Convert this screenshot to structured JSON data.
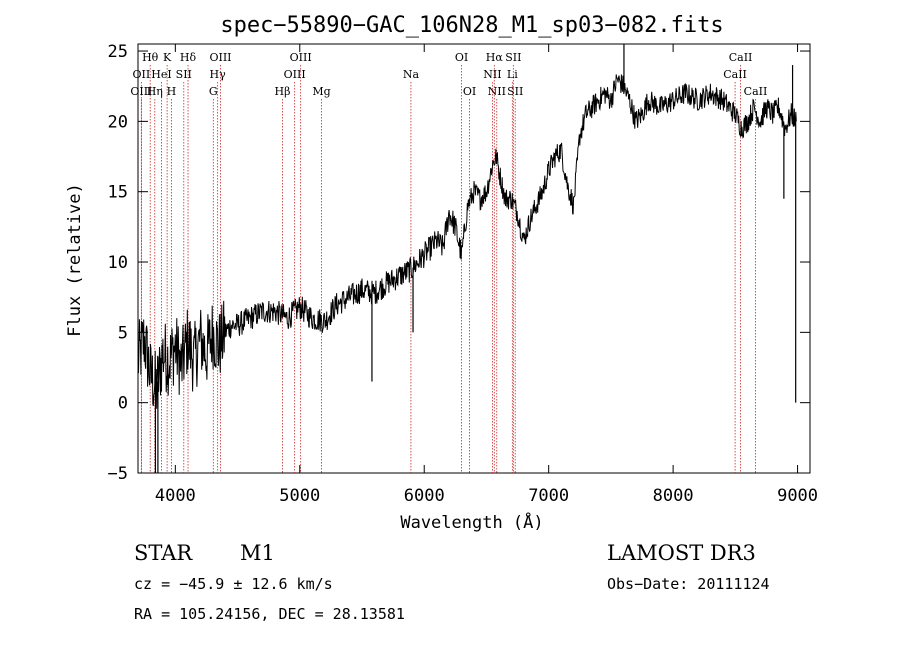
{
  "chart_data": {
    "type": "line",
    "title": "spec−55890−GAC_106N28_M1_sp03−082.fits",
    "xlabel": "Wavelength (Å)",
    "ylabel": "Flux (relative)",
    "xlim": [
      3700,
      9100
    ],
    "ylim": [
      -5,
      25.5
    ],
    "x_ticks": [
      4000,
      5000,
      6000,
      7000,
      8000,
      9000
    ],
    "y_ticks": [
      -5,
      0,
      5,
      10,
      15,
      20,
      25
    ],
    "series": [
      {
        "name": "flux",
        "x": [
          3700,
          3750,
          3800,
          3850,
          3900,
          3950,
          4000,
          4050,
          4100,
          4150,
          4200,
          4250,
          4300,
          4350,
          4400,
          4450,
          4500,
          4600,
          4700,
          4800,
          4900,
          5000,
          5100,
          5200,
          5300,
          5400,
          5500,
          5600,
          5700,
          5800,
          5900,
          6000,
          6100,
          6150,
          6200,
          6250,
          6300,
          6350,
          6400,
          6450,
          6500,
          6550,
          6580,
          6600,
          6650,
          6700,
          6750,
          6800,
          6850,
          6900,
          6950,
          7000,
          7050,
          7100,
          7150,
          7200,
          7250,
          7300,
          7350,
          7400,
          7450,
          7500,
          7550,
          7600,
          7650,
          7700,
          7750,
          7800,
          7900,
          8000,
          8100,
          8200,
          8300,
          8400,
          8500,
          8550,
          8600,
          8650,
          8700,
          8750,
          8800,
          8850,
          8900,
          8950,
          8990
        ],
        "y": [
          3.0,
          4.5,
          2.0,
          1.0,
          3.5,
          3.0,
          4.0,
          2.5,
          4.5,
          3.0,
          4.5,
          3.5,
          5.0,
          4.0,
          5.0,
          5.5,
          5.5,
          6.0,
          6.5,
          6.5,
          6.0,
          6.8,
          6.0,
          5.8,
          7.0,
          7.5,
          8.0,
          7.8,
          8.5,
          9.0,
          9.5,
          10.5,
          11.5,
          11.0,
          13.5,
          12.5,
          10.5,
          14.0,
          15.0,
          14.5,
          15.0,
          17.0,
          17.5,
          16.5,
          14.5,
          14.5,
          13.5,
          11.5,
          13.0,
          14.0,
          15.0,
          16.5,
          17.5,
          18.0,
          15.5,
          14.0,
          19.0,
          20.5,
          21.0,
          21.5,
          22.0,
          21.5,
          23.0,
          22.5,
          21.5,
          20.0,
          20.5,
          21.5,
          21.0,
          21.5,
          22.0,
          21.5,
          22.0,
          21.5,
          20.5,
          19.5,
          20.0,
          21.0,
          20.0,
          21.0,
          20.5,
          21.0,
          19.5,
          20.5,
          20.0
        ]
      }
    ],
    "spikes": [
      {
        "x": 3840,
        "y": -5.0
      },
      {
        "x": 3860,
        "y": -5.0
      },
      {
        "x": 5580,
        "y": 1.5
      },
      {
        "x": 5910,
        "y": 5.0
      },
      {
        "x": 7605,
        "y": 26.5
      },
      {
        "x": 8890,
        "y": 14.5
      },
      {
        "x": 8960,
        "y": 24.0
      },
      {
        "x": 8985,
        "y": 0.0
      }
    ],
    "spectral_lines": [
      {
        "label": "Hθ",
        "x": 3798,
        "row": 0
      },
      {
        "label": "OII",
        "x": 3727,
        "row": 1
      },
      {
        "label": "OIII",
        "x": 3727,
        "row": 2
      },
      {
        "label": "K",
        "x": 3934,
        "row": 0
      },
      {
        "label": "HeI",
        "x": 3889,
        "row": 1
      },
      {
        "label": "Hη",
        "x": 3835,
        "row": 2
      },
      {
        "label": "SII",
        "x": 4068,
        "row": 1
      },
      {
        "label": "H",
        "x": 3969,
        "row": 2
      },
      {
        "label": "Hδ",
        "x": 4102,
        "row": 0
      },
      {
        "label": "OIII",
        "x": 4363,
        "row": 0
      },
      {
        "label": "Hγ",
        "x": 4340,
        "row": 1
      },
      {
        "label": "G",
        "x": 4305,
        "row": 2
      },
      {
        "label": "OIII",
        "x": 5007,
        "row": 0
      },
      {
        "label": "OIII",
        "x": 4959,
        "row": 1
      },
      {
        "label": "Hβ",
        "x": 4861,
        "row": 2
      },
      {
        "label": "Mg",
        "x": 5175,
        "row": 2
      },
      {
        "label": "Na",
        "x": 5893,
        "row": 1
      },
      {
        "label": "OI",
        "x": 6300,
        "row": 0
      },
      {
        "label": "OI",
        "x": 6364,
        "row": 2
      },
      {
        "label": "Hα",
        "x": 6563,
        "row": 0
      },
      {
        "label": "SII",
        "x": 6716,
        "row": 0
      },
      {
        "label": "NII",
        "x": 6548,
        "row": 1
      },
      {
        "label": "Li",
        "x": 6708,
        "row": 1
      },
      {
        "label": "NII",
        "x": 6583,
        "row": 2
      },
      {
        "label": "SII",
        "x": 6731,
        "row": 2
      },
      {
        "label": "CaII",
        "x": 8542,
        "row": 0
      },
      {
        "label": "CaII",
        "x": 8498,
        "row": 1
      },
      {
        "label": "CaII",
        "x": 8662,
        "row": 2
      }
    ]
  },
  "info": {
    "object_class": "STAR",
    "subclass": "M1",
    "survey": "LAMOST DR3",
    "cz": "cz = −45.9 ± 12.6 km/s",
    "obs_date": "Obs−Date: 20111124",
    "coords": "RA = 105.24156, DEC =  28.13581"
  },
  "colors": {
    "line_marker": "#c62828",
    "spectrum": "#000000"
  }
}
